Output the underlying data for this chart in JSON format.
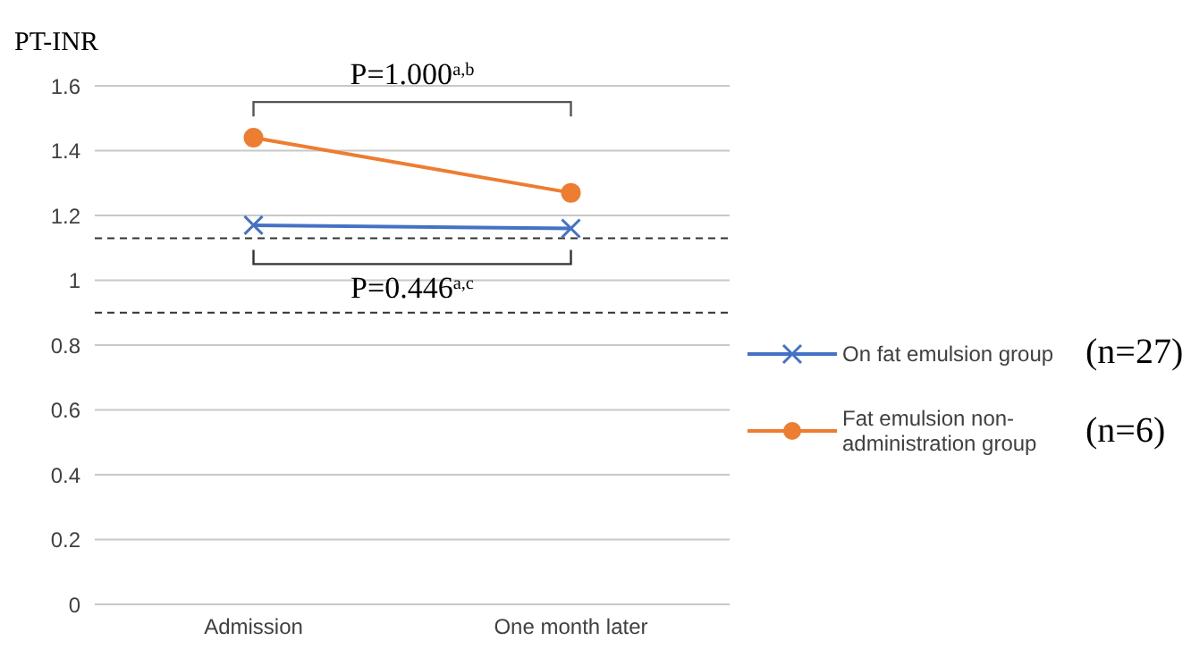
{
  "chart_data": {
    "type": "line",
    "ylabel": "PT-INR",
    "categories": [
      "Admission",
      "One month later"
    ],
    "series": [
      {
        "name": "On fat emulsion group",
        "color": "#4472c4",
        "values": [
          1.17,
          1.16
        ],
        "marker": "cross"
      },
      {
        "name": "Fat emulsion non-administration group",
        "color": "#ed7d31",
        "values": [
          1.44,
          1.27
        ],
        "marker": "circle"
      }
    ],
    "ylim": [
      0,
      1.6
    ],
    "yticks": [
      0,
      0.2,
      0.4,
      0.6,
      0.8,
      1,
      1.2,
      1.4,
      1.6
    ],
    "grid": "y",
    "legend": "right",
    "ref_lines": [
      {
        "axis": "y",
        "value": 1.13,
        "line_style": "dashed",
        "color": "#333333"
      },
      {
        "axis": "y",
        "value": 0.9,
        "line_style": "dashed",
        "color": "#333333"
      }
    ],
    "annotations": [
      "P=1.000$^{a,b}$",
      "P=0.446$^{a,c}$",
      "(n=27)",
      "(n=6)"
    ]
  }
}
